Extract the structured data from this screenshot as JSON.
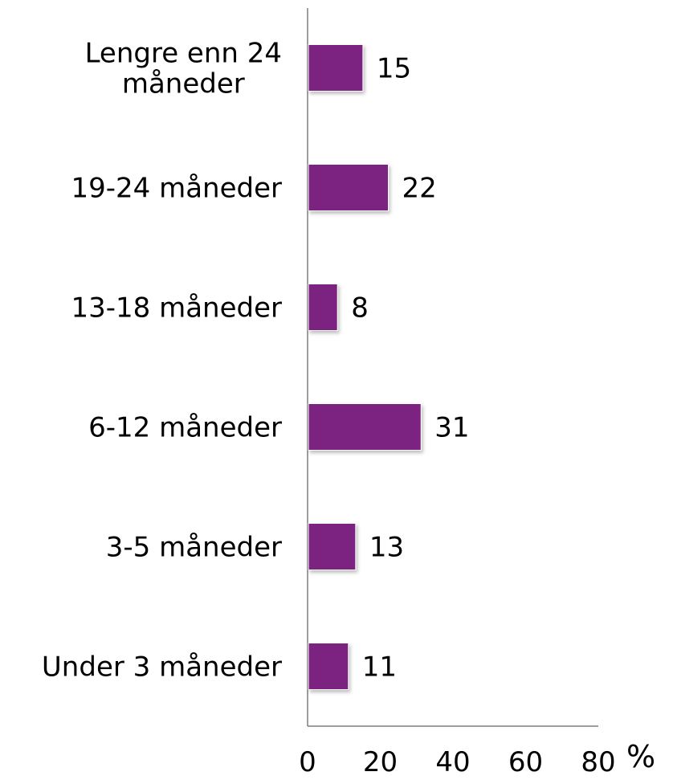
{
  "chart_data": {
    "type": "bar",
    "orientation": "horizontal",
    "categories": [
      "Lengre enn 24 måneder",
      "19-24 måneder",
      "13-18 måneder",
      "6-12 måneder",
      "3-5 måneder",
      "Under 3 måneder"
    ],
    "category_lines": [
      [
        "Lengre enn 24",
        "måneder"
      ],
      [
        "19-24 måneder"
      ],
      [
        "13-18 måneder"
      ],
      [
        "6-12 måneder"
      ],
      [
        "3-5 måneder"
      ],
      [
        "Under 3 måneder"
      ]
    ],
    "values": [
      15,
      22,
      8,
      31,
      13,
      11
    ],
    "x_ticks": [
      "0",
      "20",
      "40",
      "60",
      "80"
    ],
    "xlim": [
      0,
      80
    ],
    "unit_label": "%",
    "bar_color": "#7B2180",
    "axis_color": "#7F7F7F",
    "grid": false,
    "legend": "none"
  }
}
